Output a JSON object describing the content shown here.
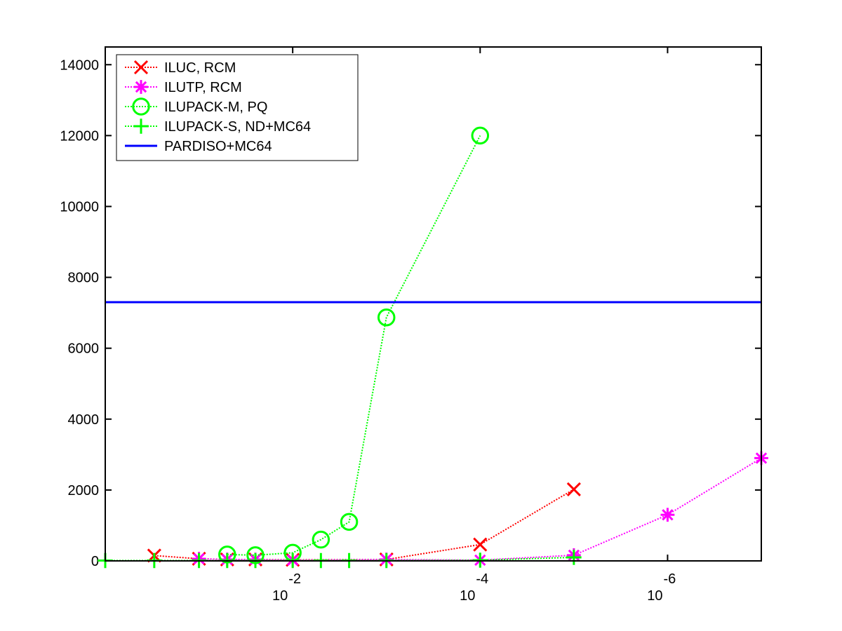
{
  "chart_data": {
    "type": "line",
    "title": "",
    "xlabel": "",
    "ylabel": "",
    "x_scale": "log-reversed",
    "xlim": [
      1,
      1e-07
    ],
    "ylim": [
      0,
      14500
    ],
    "grid": false,
    "legend_position": "top-left",
    "x_ticks": [
      {
        "base": "10",
        "exp": "-2"
      },
      {
        "base": "10",
        "exp": "-4"
      },
      {
        "base": "10",
        "exp": "-6"
      }
    ],
    "y_ticks": [
      "0",
      "2000",
      "4000",
      "6000",
      "8000",
      "10000",
      "12000",
      "14000"
    ],
    "series": [
      {
        "name": "ILUC, RCM",
        "color": "#ff0000",
        "line_style": "dotted",
        "marker": "x",
        "x": [
          0.3,
          0.1,
          0.05,
          0.025,
          0.01,
          0.001,
          0.0001,
          1e-05
        ],
        "y": [
          150,
          60,
          40,
          40,
          30,
          40,
          460,
          2020
        ]
      },
      {
        "name": "ILUTP, RCM",
        "color": "#ff00ff",
        "line_style": "dotted",
        "marker": "asterisk",
        "x": [
          0.1,
          0.05,
          0.025,
          0.01,
          0.001,
          0.0001,
          1e-05,
          1e-06,
          1e-07
        ],
        "y": [
          60,
          40,
          40,
          20,
          40,
          20,
          160,
          1300,
          2900
        ]
      },
      {
        "name": "ILUPACK-M, PQ",
        "color": "#00ff00",
        "line_style": "dotted",
        "marker": "circle",
        "x": [
          0.05,
          0.025,
          0.01,
          0.005,
          0.0025,
          0.001,
          0.0001
        ],
        "y": [
          180,
          160,
          230,
          600,
          1100,
          6870,
          12000
        ]
      },
      {
        "name": "ILUPACK-S, ND+MC64",
        "color": "#00ff00",
        "line_style": "dotted",
        "marker": "plus",
        "x": [
          1,
          0.3,
          0.1,
          0.05,
          0.025,
          0.01,
          0.005,
          0.0025,
          0.001,
          0.0001,
          1e-05
        ],
        "y": [
          10,
          10,
          10,
          10,
          10,
          10,
          10,
          10,
          10,
          20,
          100
        ]
      },
      {
        "name": "PARDISO+MC64",
        "color": "#0000ff",
        "line_style": "solid",
        "marker": "none",
        "x": [
          1,
          1e-07
        ],
        "y": [
          7300,
          7300
        ]
      }
    ]
  }
}
